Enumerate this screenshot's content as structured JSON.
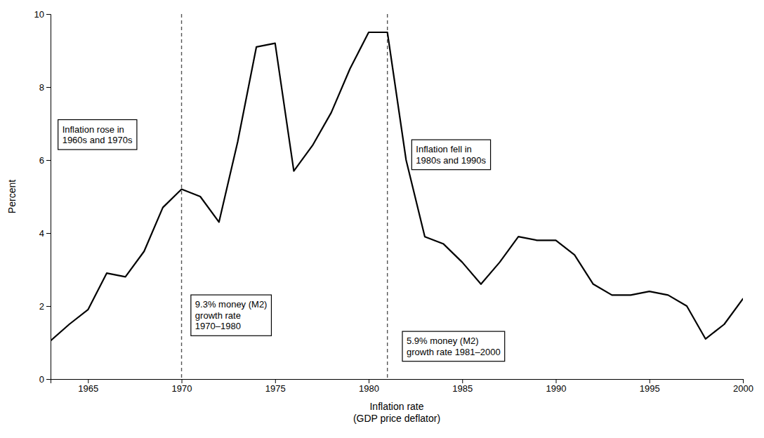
{
  "chart_data": {
    "type": "line",
    "xlabel": "Inflation rate\n(GDP price deflator)",
    "ylabel": "Percent",
    "x": [
      1963,
      1964,
      1965,
      1966,
      1967,
      1968,
      1969,
      1970,
      1971,
      1972,
      1973,
      1974,
      1975,
      1976,
      1977,
      1978,
      1979,
      1980,
      1981,
      1982,
      1983,
      1984,
      1985,
      1986,
      1987,
      1988,
      1989,
      1990,
      1991,
      1992,
      1993,
      1994,
      1995,
      1996,
      1997,
      1998,
      1999,
      2000
    ],
    "values": [
      1.05,
      1.5,
      1.9,
      2.9,
      2.8,
      3.5,
      4.7,
      5.2,
      5.0,
      4.3,
      6.5,
      9.1,
      9.2,
      5.7,
      6.4,
      7.3,
      8.5,
      9.5,
      9.5,
      6.0,
      3.9,
      3.7,
      3.2,
      2.6,
      3.2,
      3.9,
      3.8,
      3.8,
      3.4,
      2.6,
      2.3,
      2.3,
      2.4,
      2.3,
      2.0,
      1.1,
      1.5,
      2.2
    ],
    "color": "#000000",
    "vlines": [
      1970,
      1981
    ],
    "xlim": [
      1963,
      2000
    ],
    "ylim": [
      0,
      10
    ],
    "xticks": [
      1965,
      1970,
      1975,
      1980,
      1985,
      1990,
      1995,
      2000
    ],
    "yticks": [
      0,
      2,
      4,
      6,
      8,
      10
    ],
    "grid": false,
    "annotations": [
      {
        "text": "Inflation rose in\n1960s and 1970s",
        "x": 1963.4,
        "y": 7.1
      },
      {
        "text": "9.3% money (M2)\ngrowth rate\n1970–1980",
        "x": 1970.5,
        "y": 2.3
      },
      {
        "text": "Inflation fell in\n1980s and 1990s",
        "x": 1982.3,
        "y": 6.55
      },
      {
        "text": "5.9% money (M2)\ngrowth rate 1981–2000",
        "x": 1981.8,
        "y": 1.3
      }
    ]
  }
}
